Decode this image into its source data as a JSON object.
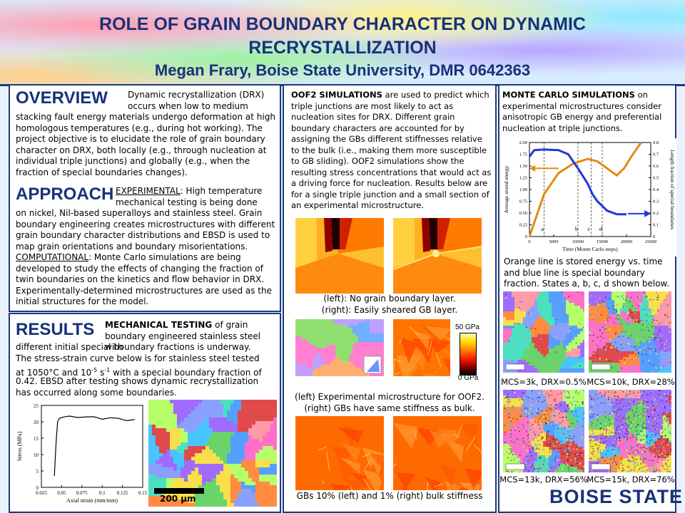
{
  "header": {
    "title_line1": "ROLE OF GRAIN BOUNDARY CHARACTER ON DYNAMIC",
    "title_line2": "RECRYSTALLIZATION",
    "author": "Megan Frary, Boise State University, DMR 0642363"
  },
  "overview": {
    "heading": "OVERVIEW",
    "text_first": "Dynamic recrystallization (DRX) occurs when low to medium",
    "text_rest": "stacking fault energy materials undergo deformation at high homologous temperatures (e.g., during hot working). The project objective is to elucidate the role of grain boundary character on DRX, both locally (e.g., through nucleation at individual triple junctions) and globally (e.g., when the fraction of special boundaries changes)."
  },
  "approach": {
    "heading": "APPROACH",
    "exp_label": "EXPERIMENTAL",
    "exp_first": ": High temperature mechanical testing is being done",
    "exp_rest": "on nickel, Nil-based superalloys and stainless steel. Grain boundary engineering creates microstructures with different grain boundary character distributions and EBSD is used to map grain orientations and boundary misorientations.",
    "comp_label": "COMPUTATIONAL",
    "comp_text": ": Monte Carlo simulations are being developed to study the effects of changing the fraction of twin boundaries on the kinetics and flow behavior in DRX. Experimentally-determined microstructures are used as the initial structures for the model."
  },
  "results": {
    "heading": "RESULTS",
    "mt_label": "MECHANICAL TESTING",
    "mt_first": " of grain boundary engineered stainless steel with",
    "mt_rest": "different initial special boundary fractions is underway.",
    "line2": "The stress-strain curve below is for stainless steel tested",
    "line3": "at 1050°C and 10",
    "exp1": "-5",
    "line3b": " s",
    "exp2": "-1",
    "line3c": " with a special boundary fraction of",
    "line4": "0.42.  EBSD after testing shows dynamic recrystallization",
    "line5": "has occurred along some boundaries.",
    "scale_label": "200 μm"
  },
  "stress_chart": {
    "chart_data": {
      "type": "line",
      "xlabel": "Axial strain (mm/mm)",
      "ylabel": "Stress (MPa)",
      "xlim": [
        0.025,
        0.15
      ],
      "ylim": [
        0,
        25
      ],
      "x_ticks": [
        "0.025",
        "0.05",
        "0.075",
        "0.1",
        "0.125",
        "0.15"
      ],
      "y_ticks": [
        "0",
        "5",
        "10",
        "15",
        "20",
        "25"
      ],
      "series": [
        {
          "x": [
            0.041,
            0.043,
            0.045,
            0.047,
            0.05,
            0.055,
            0.06,
            0.07,
            0.08,
            0.09,
            0.1,
            0.11,
            0.12,
            0.13,
            0.14
          ],
          "y": [
            3.5,
            13,
            20,
            21,
            21.3,
            21.8,
            21.5,
            21.4,
            21.6,
            21.3,
            21.0,
            21.2,
            20.9,
            20.6,
            20.5
          ]
        }
      ]
    }
  },
  "oof2": {
    "label": "OOF2 SIMULATIONS",
    "intro": " are used to predict which triple junctions are most likely to act as nucleation sites for DRX. Different grain boundary characters are accounted for by assigning the GBs different stiffnesses relative to the bulk (i.e., making them more susceptible to GB sliding).  OOF2 simulations show the resulting stress concentrations that would act as a driving force for nucleation.  Results below are for a single triple junction  and a small section of an experimental microstructure.",
    "cap1a": "(left): No grain boundary layer.",
    "cap1b": "(right): Easily sheared GB layer.",
    "cb_top": "50 GPa",
    "cb_bottom": "0 GPa",
    "cap2a": "(left) Experimental microstructure for OOF2.",
    "cap2b": "(right) GBs have same stiffness as bulk.",
    "cap3": "GBs 10% (left) and 1% (right) bulk stiffness"
  },
  "monte_carlo": {
    "label": "MONTE CARLO SIMULATIONS",
    "intro": " on experimental microstructures consider anisotropic GB energy and preferential nucleation at triple junctions.",
    "desc": "Orange line is stored energy vs. time and blue line is special boundary fraction. States a, b, c, d shown below.",
    "states": [
      "MCS=3k, DRX=0.5%",
      "MCS=10k, DRX=28%",
      "MCS=13k, DRX=56%",
      "MCS=15k, DRX=76%"
    ],
    "logo": "BOISE STATE"
  },
  "mc_chart": {
    "chart_data": {
      "type": "line",
      "xlabel": "Time (Monte Carlo steps)",
      "ylabel": "Average stored energy",
      "ylabel2": "Length fraction of special boundaries",
      "xlim": [
        0,
        25000
      ],
      "ylim": [
        0,
        2.0
      ],
      "ylim2": [
        0,
        0.8
      ],
      "x_ticks": [
        "0",
        "5000",
        "10000",
        "15000",
        "20000",
        "25000"
      ],
      "y_ticks": [
        "0",
        "0.25",
        "0.50",
        "0.75",
        "1.00",
        "1.25",
        "1.50",
        "1.75",
        "2.00"
      ],
      "y2_ticks": [
        "0",
        "0.1",
        "0.2",
        "0.3",
        "0.4",
        "0.5",
        "0.6",
        "0.7",
        "0.8"
      ],
      "markers": [
        "a",
        "b",
        "c",
        "d"
      ],
      "marker_x": [
        3000,
        10000,
        12700,
        15000
      ],
      "series": [
        {
          "x": [
            0,
            3000,
            6000,
            9000,
            12000,
            14000,
            16000,
            18000,
            19500,
            21000,
            23000
          ],
          "y": [
            0.0,
            0.9,
            1.35,
            1.55,
            1.65,
            1.6,
            1.45,
            1.3,
            1.45,
            1.7,
            2.0
          ],
          "color": "#e38a14",
          "axis": "left"
        },
        {
          "x": [
            0,
            1000,
            3000,
            6000,
            8000,
            10000,
            12000,
            13000,
            14000,
            15000,
            16000,
            18000,
            20000
          ],
          "y": [
            0.68,
            0.735,
            0.74,
            0.735,
            0.7,
            0.58,
            0.45,
            0.36,
            0.3,
            0.26,
            0.22,
            0.19,
            0.19
          ],
          "color": "#1f37d8",
          "axis": "right"
        }
      ]
    }
  },
  "colors": {
    "title": "#17327a",
    "border": "#1d3b7d",
    "orange": "#e38a14",
    "blue": "#1f37d8"
  }
}
